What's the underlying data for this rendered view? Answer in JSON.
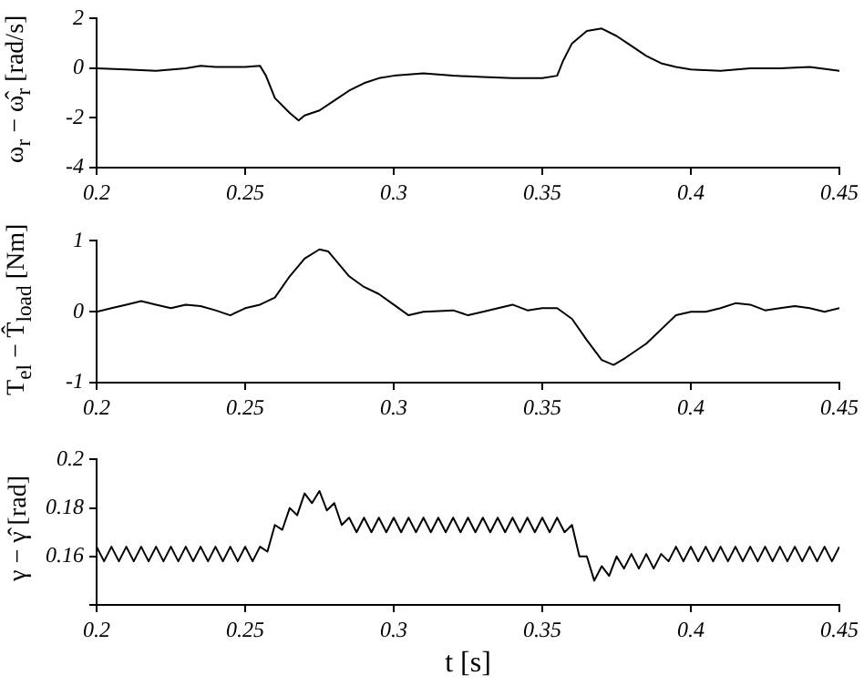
{
  "chart_data": [
    {
      "type": "line",
      "ylabel": "ω$_{r}$ − ω̂$_{r}$ [rad/s]",
      "color": "#000000",
      "grid": false,
      "xlim": [
        0.2,
        0.45
      ],
      "xticks": [
        0.2,
        0.25,
        0.3,
        0.35,
        0.4,
        0.45
      ],
      "ylim": [
        -4,
        2
      ],
      "yticks": [
        -4,
        -2,
        0,
        2
      ],
      "x": [
        0.2,
        0.21,
        0.22,
        0.23,
        0.235,
        0.24,
        0.25,
        0.255,
        0.257,
        0.26,
        0.265,
        0.268,
        0.27,
        0.275,
        0.28,
        0.285,
        0.29,
        0.295,
        0.3,
        0.31,
        0.32,
        0.33,
        0.34,
        0.35,
        0.355,
        0.357,
        0.36,
        0.365,
        0.37,
        0.375,
        0.38,
        0.385,
        0.39,
        0.395,
        0.4,
        0.41,
        0.42,
        0.43,
        0.44,
        0.45
      ],
      "values": [
        0,
        -0.05,
        -0.1,
        0,
        0.1,
        0.05,
        0.05,
        0.1,
        -0.3,
        -1.2,
        -1.8,
        -2.1,
        -1.9,
        -1.7,
        -1.3,
        -0.9,
        -0.6,
        -0.4,
        -0.3,
        -0.2,
        -0.3,
        -0.35,
        -0.4,
        -0.4,
        -0.3,
        0.3,
        1.0,
        1.5,
        1.6,
        1.3,
        0.9,
        0.5,
        0.2,
        0.05,
        -0.05,
        -0.1,
        0,
        0,
        0.05,
        -0.1
      ]
    },
    {
      "type": "line",
      "ylabel": "T$_{el}$ − T̂$_{load}$ [Nm]",
      "color": "#000000",
      "grid": false,
      "xlim": [
        0.2,
        0.45
      ],
      "xticks": [
        0.2,
        0.25,
        0.3,
        0.35,
        0.4,
        0.45
      ],
      "ylim": [
        -1,
        1
      ],
      "yticks": [
        -1,
        0,
        1
      ],
      "x": [
        0.2,
        0.205,
        0.21,
        0.215,
        0.22,
        0.225,
        0.23,
        0.235,
        0.24,
        0.245,
        0.25,
        0.255,
        0.26,
        0.265,
        0.27,
        0.275,
        0.278,
        0.28,
        0.285,
        0.29,
        0.295,
        0.3,
        0.305,
        0.31,
        0.32,
        0.325,
        0.33,
        0.34,
        0.345,
        0.35,
        0.355,
        0.36,
        0.365,
        0.37,
        0.374,
        0.378,
        0.385,
        0.39,
        0.395,
        0.4,
        0.405,
        0.41,
        0.415,
        0.42,
        0.425,
        0.43,
        0.435,
        0.44,
        0.445,
        0.45
      ],
      "values": [
        0,
        0.05,
        0.1,
        0.15,
        0.1,
        0.05,
        0.1,
        0.08,
        0.02,
        -0.05,
        0.05,
        0.1,
        0.2,
        0.5,
        0.75,
        0.88,
        0.85,
        0.75,
        0.5,
        0.35,
        0.25,
        0.1,
        -0.05,
        0,
        0.02,
        -0.05,
        0,
        0.1,
        0.02,
        0.05,
        0.05,
        -0.1,
        -0.4,
        -0.68,
        -0.75,
        -0.65,
        -0.45,
        -0.25,
        -0.05,
        0,
        0,
        0.05,
        0.12,
        0.1,
        0.02,
        0.05,
        0.08,
        0.05,
        0,
        0.05
      ]
    },
    {
      "type": "line",
      "ylabel": "γ − γ̂ [rad]",
      "xlabel": "t [s]",
      "color": "#000000",
      "grid": false,
      "xlim": [
        0.2,
        0.45
      ],
      "xticks": [
        0.2,
        0.25,
        0.3,
        0.35,
        0.4,
        0.45
      ],
      "ylim": [
        0.14,
        0.2
      ],
      "yticks": [
        {
          "value": 0.14,
          "label": null
        },
        0.16,
        0.18,
        0.2
      ],
      "x": [
        0.2,
        0.2025,
        0.205,
        0.2075,
        0.21,
        0.2125,
        0.215,
        0.2175,
        0.22,
        0.2225,
        0.225,
        0.2275,
        0.23,
        0.2325,
        0.235,
        0.2375,
        0.24,
        0.2425,
        0.245,
        0.2475,
        0.25,
        0.2525,
        0.255,
        0.2575,
        0.26,
        0.2625,
        0.265,
        0.2675,
        0.27,
        0.2725,
        0.275,
        0.2775,
        0.28,
        0.2825,
        0.285,
        0.2875,
        0.29,
        0.2925,
        0.295,
        0.2975,
        0.3,
        0.3025,
        0.305,
        0.3075,
        0.31,
        0.3125,
        0.315,
        0.3175,
        0.32,
        0.3225,
        0.325,
        0.3275,
        0.33,
        0.3325,
        0.335,
        0.3375,
        0.34,
        0.3425,
        0.345,
        0.3475,
        0.35,
        0.3525,
        0.355,
        0.3575,
        0.36,
        0.3625,
        0.365,
        0.3675,
        0.37,
        0.3725,
        0.375,
        0.3775,
        0.38,
        0.3825,
        0.385,
        0.3875,
        0.39,
        0.3925,
        0.395,
        0.3975,
        0.4,
        0.4025,
        0.405,
        0.4075,
        0.41,
        0.4125,
        0.415,
        0.4175,
        0.42,
        0.4225,
        0.425,
        0.4275,
        0.43,
        0.4325,
        0.435,
        0.4375,
        0.44,
        0.4425,
        0.445,
        0.4475,
        0.45
      ],
      "values": [
        0.164,
        0.158,
        0.164,
        0.158,
        0.164,
        0.158,
        0.164,
        0.158,
        0.164,
        0.158,
        0.164,
        0.158,
        0.164,
        0.158,
        0.164,
        0.158,
        0.164,
        0.158,
        0.164,
        0.158,
        0.164,
        0.158,
        0.164,
        0.162,
        0.173,
        0.171,
        0.18,
        0.177,
        0.186,
        0.182,
        0.187,
        0.179,
        0.182,
        0.173,
        0.176,
        0.17,
        0.176,
        0.17,
        0.176,
        0.17,
        0.176,
        0.17,
        0.176,
        0.17,
        0.176,
        0.17,
        0.176,
        0.17,
        0.176,
        0.17,
        0.176,
        0.17,
        0.176,
        0.17,
        0.176,
        0.17,
        0.176,
        0.17,
        0.176,
        0.17,
        0.176,
        0.17,
        0.176,
        0.17,
        0.173,
        0.16,
        0.16,
        0.15,
        0.156,
        0.152,
        0.16,
        0.155,
        0.161,
        0.155,
        0.161,
        0.155,
        0.161,
        0.158,
        0.164,
        0.158,
        0.164,
        0.158,
        0.164,
        0.158,
        0.164,
        0.158,
        0.164,
        0.158,
        0.164,
        0.158,
        0.164,
        0.158,
        0.164,
        0.158,
        0.164,
        0.158,
        0.164,
        0.158,
        0.164,
        0.158,
        0.164
      ]
    }
  ]
}
